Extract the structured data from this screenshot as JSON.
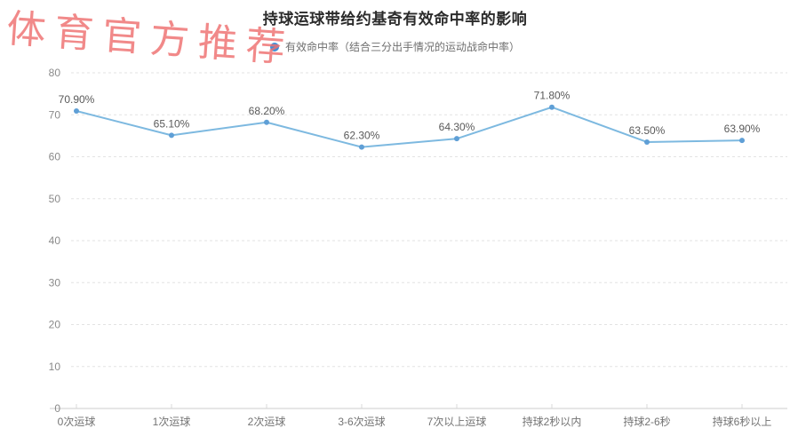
{
  "watermark": {
    "text": "体育官方推荐",
    "color": "#ef7070"
  },
  "legend": {
    "label": "有效命中率（结合三分出手情况的运动战命中率）",
    "marker_color": "#3d8fd8"
  },
  "colors": {
    "line": "#7db9e0",
    "marker": "#5f9fd6",
    "grid": "#e3e3e3",
    "axis": "#cccccc",
    "axis_tick": "#d9d9d9"
  },
  "chart_data": {
    "type": "line",
    "title": "持球运球带给约基奇有效命中率的影响",
    "categories": [
      "0次运球",
      "1次运球",
      "2次运球",
      "3-6次运球",
      "7次以上运球",
      "持球2秒以内",
      "持球2-6秒",
      "持球6秒以上"
    ],
    "series": [
      {
        "name": "有效命中率（结合三分出手情况的运动战命中率）",
        "values": [
          70.9,
          65.1,
          68.2,
          62.3,
          64.3,
          71.8,
          63.5,
          63.9
        ],
        "data_labels": [
          "70.90%",
          "65.10%",
          "68.20%",
          "62.30%",
          "64.30%",
          "71.80%",
          "63.50%",
          "63.90%"
        ]
      }
    ],
    "xlabel": "",
    "ylabel": "",
    "ylim": [
      0,
      80
    ],
    "y_ticks": [
      0,
      10,
      20,
      30,
      40,
      50,
      60,
      70,
      80
    ],
    "grid": "dashed-horizontal",
    "legend_position": "top"
  }
}
